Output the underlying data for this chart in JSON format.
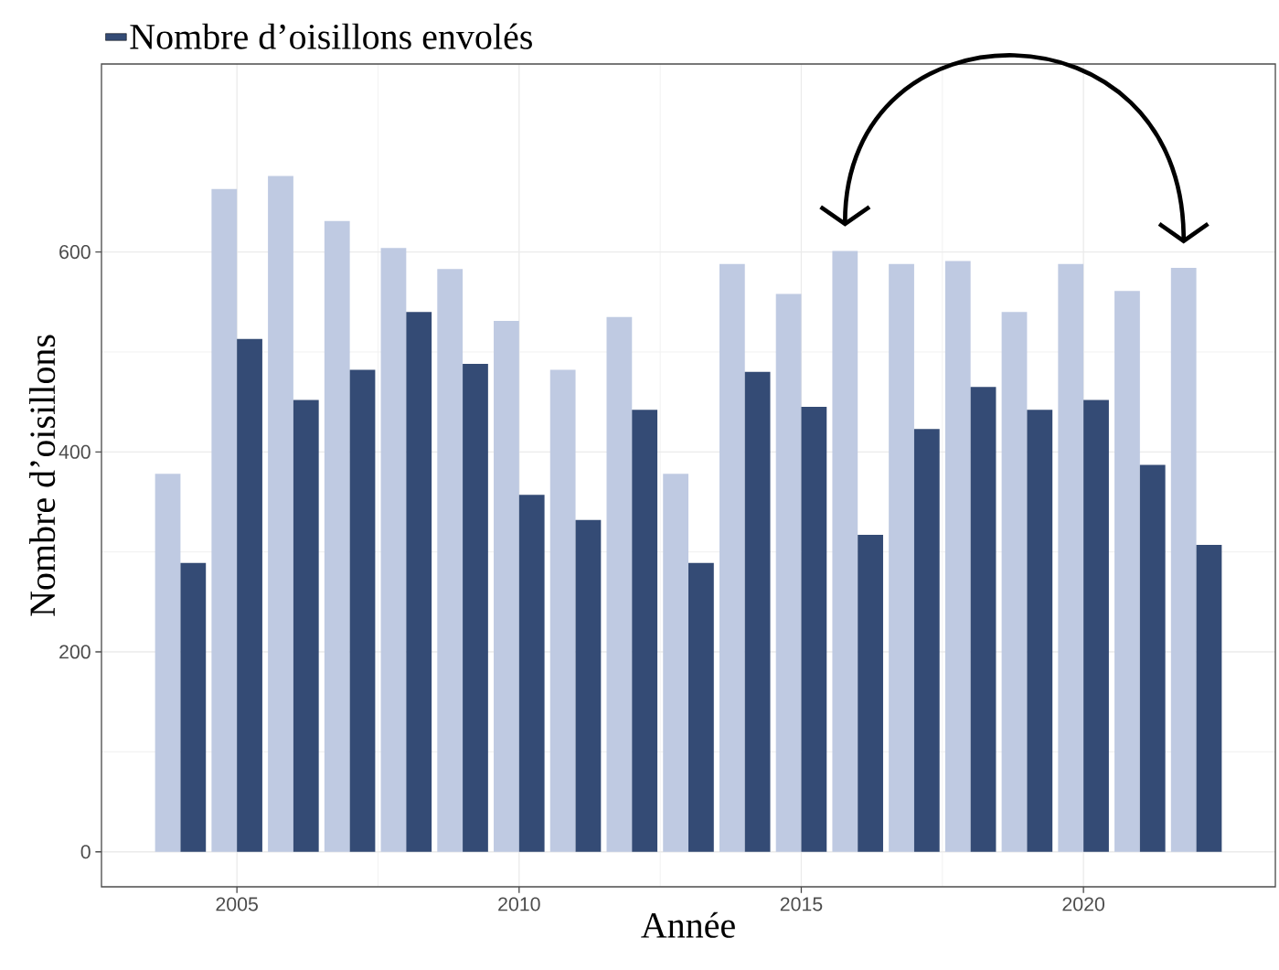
{
  "chart_data": {
    "type": "bar",
    "xlabel": "Année",
    "ylabel": "Nombre d’oisillons",
    "x": [
      2004,
      2005,
      2006,
      2007,
      2008,
      2009,
      2010,
      2011,
      2012,
      2013,
      2014,
      2015,
      2016,
      2017,
      2018,
      2019,
      2020,
      2021,
      2022
    ],
    "series": [
      {
        "color": "#bfcae2",
        "values": [
          378,
          663,
          676,
          631,
          604,
          583,
          531,
          482,
          535,
          378,
          588,
          558,
          601,
          588,
          591,
          540,
          588,
          561,
          584
        ]
      },
      {
        "name": "Nombre d’oisillons envolés",
        "color": "#344b75",
        "values": [
          289,
          513,
          452,
          482,
          540,
          488,
          357,
          332,
          442,
          289,
          480,
          445,
          317,
          423,
          465,
          442,
          452,
          387,
          307
        ]
      }
    ],
    "xlim": [
      2002.6,
      2023.4
    ],
    "ylim": [
      -35,
      788
    ],
    "xticks": [
      2005,
      2010,
      2015,
      2020
    ],
    "yticks": [
      0,
      200,
      400,
      600
    ],
    "grid": true,
    "legend": "top left"
  }
}
